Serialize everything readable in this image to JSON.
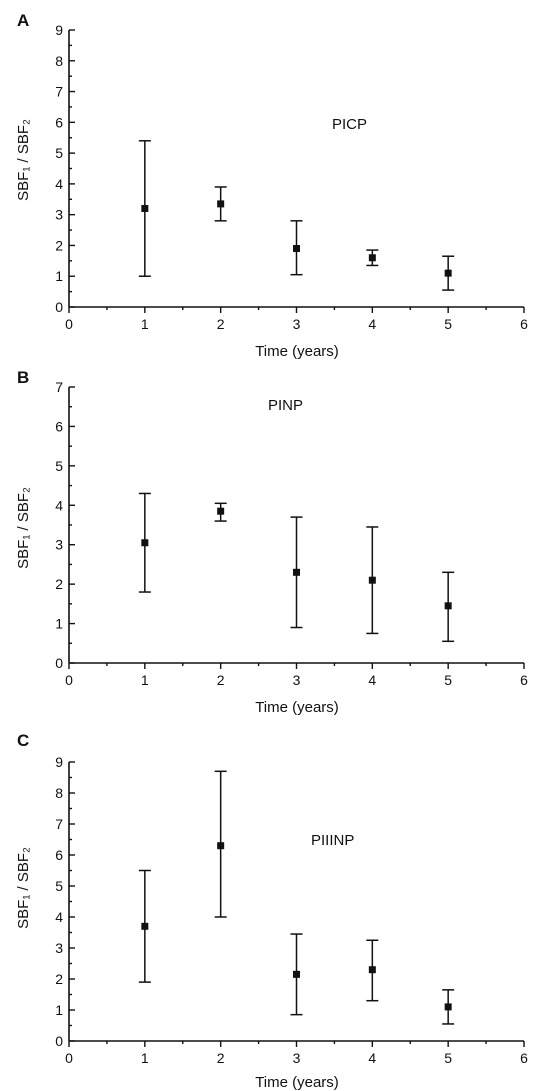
{
  "chart_data": [
    {
      "type": "scatter",
      "panel": "A",
      "label": "PICP",
      "xlabel": "Time (years)",
      "ylabel": "SBF₁ / SBF₂",
      "xlim": [
        0,
        6
      ],
      "ylim": [
        0,
        9
      ],
      "x_ticks": [
        "0",
        "1",
        "2",
        "3",
        "4",
        "5",
        "6"
      ],
      "y_ticks": [
        "0",
        "1",
        "2",
        "3",
        "4",
        "5",
        "6",
        "7",
        "8",
        "9"
      ],
      "points": [
        {
          "x": 1,
          "y": 3.2,
          "lo": 1.0,
          "hi": 5.4
        },
        {
          "x": 2,
          "y": 3.35,
          "lo": 2.8,
          "hi": 3.9
        },
        {
          "x": 3,
          "y": 1.9,
          "lo": 1.05,
          "hi": 2.8
        },
        {
          "x": 4,
          "y": 1.6,
          "lo": 1.35,
          "hi": 1.85
        },
        {
          "x": 5,
          "y": 1.1,
          "lo": 0.55,
          "hi": 1.65
        }
      ]
    },
    {
      "type": "scatter",
      "panel": "B",
      "label": "PINP",
      "xlabel": "Time (years)",
      "ylabel": "SBF₁ / SBF₂",
      "xlim": [
        0,
        6
      ],
      "ylim": [
        0,
        7
      ],
      "x_ticks": [
        "0",
        "1",
        "2",
        "3",
        "4",
        "5",
        "6"
      ],
      "y_ticks": [
        "0",
        "1",
        "2",
        "3",
        "4",
        "5",
        "6",
        "7"
      ],
      "points": [
        {
          "x": 1,
          "y": 3.05,
          "lo": 1.8,
          "hi": 4.3
        },
        {
          "x": 2,
          "y": 3.85,
          "lo": 3.6,
          "hi": 4.05
        },
        {
          "x": 3,
          "y": 2.3,
          "lo": 0.9,
          "hi": 3.7
        },
        {
          "x": 4,
          "y": 2.1,
          "lo": 0.75,
          "hi": 3.45
        },
        {
          "x": 5,
          "y": 1.45,
          "lo": 0.55,
          "hi": 2.3
        }
      ]
    },
    {
      "type": "scatter",
      "panel": "C",
      "label": "PIIINP",
      "xlabel": "Time (years)",
      "ylabel": "SBF₁ / SBF₂",
      "xlim": [
        0,
        6
      ],
      "ylim": [
        0,
        9
      ],
      "x_ticks": [
        "0",
        "1",
        "2",
        "3",
        "4",
        "5",
        "6"
      ],
      "y_ticks": [
        "0",
        "1",
        "2",
        "3",
        "4",
        "5",
        "6",
        "7",
        "8",
        "9"
      ],
      "points": [
        {
          "x": 1,
          "y": 3.7,
          "lo": 1.9,
          "hi": 5.5
        },
        {
          "x": 2,
          "y": 6.3,
          "lo": 4.0,
          "hi": 8.7
        },
        {
          "x": 3,
          "y": 2.15,
          "lo": 0.85,
          "hi": 3.45
        },
        {
          "x": 4,
          "y": 2.3,
          "lo": 1.3,
          "hi": 3.25
        },
        {
          "x": 5,
          "y": 1.1,
          "lo": 0.55,
          "hi": 1.65
        }
      ]
    }
  ]
}
